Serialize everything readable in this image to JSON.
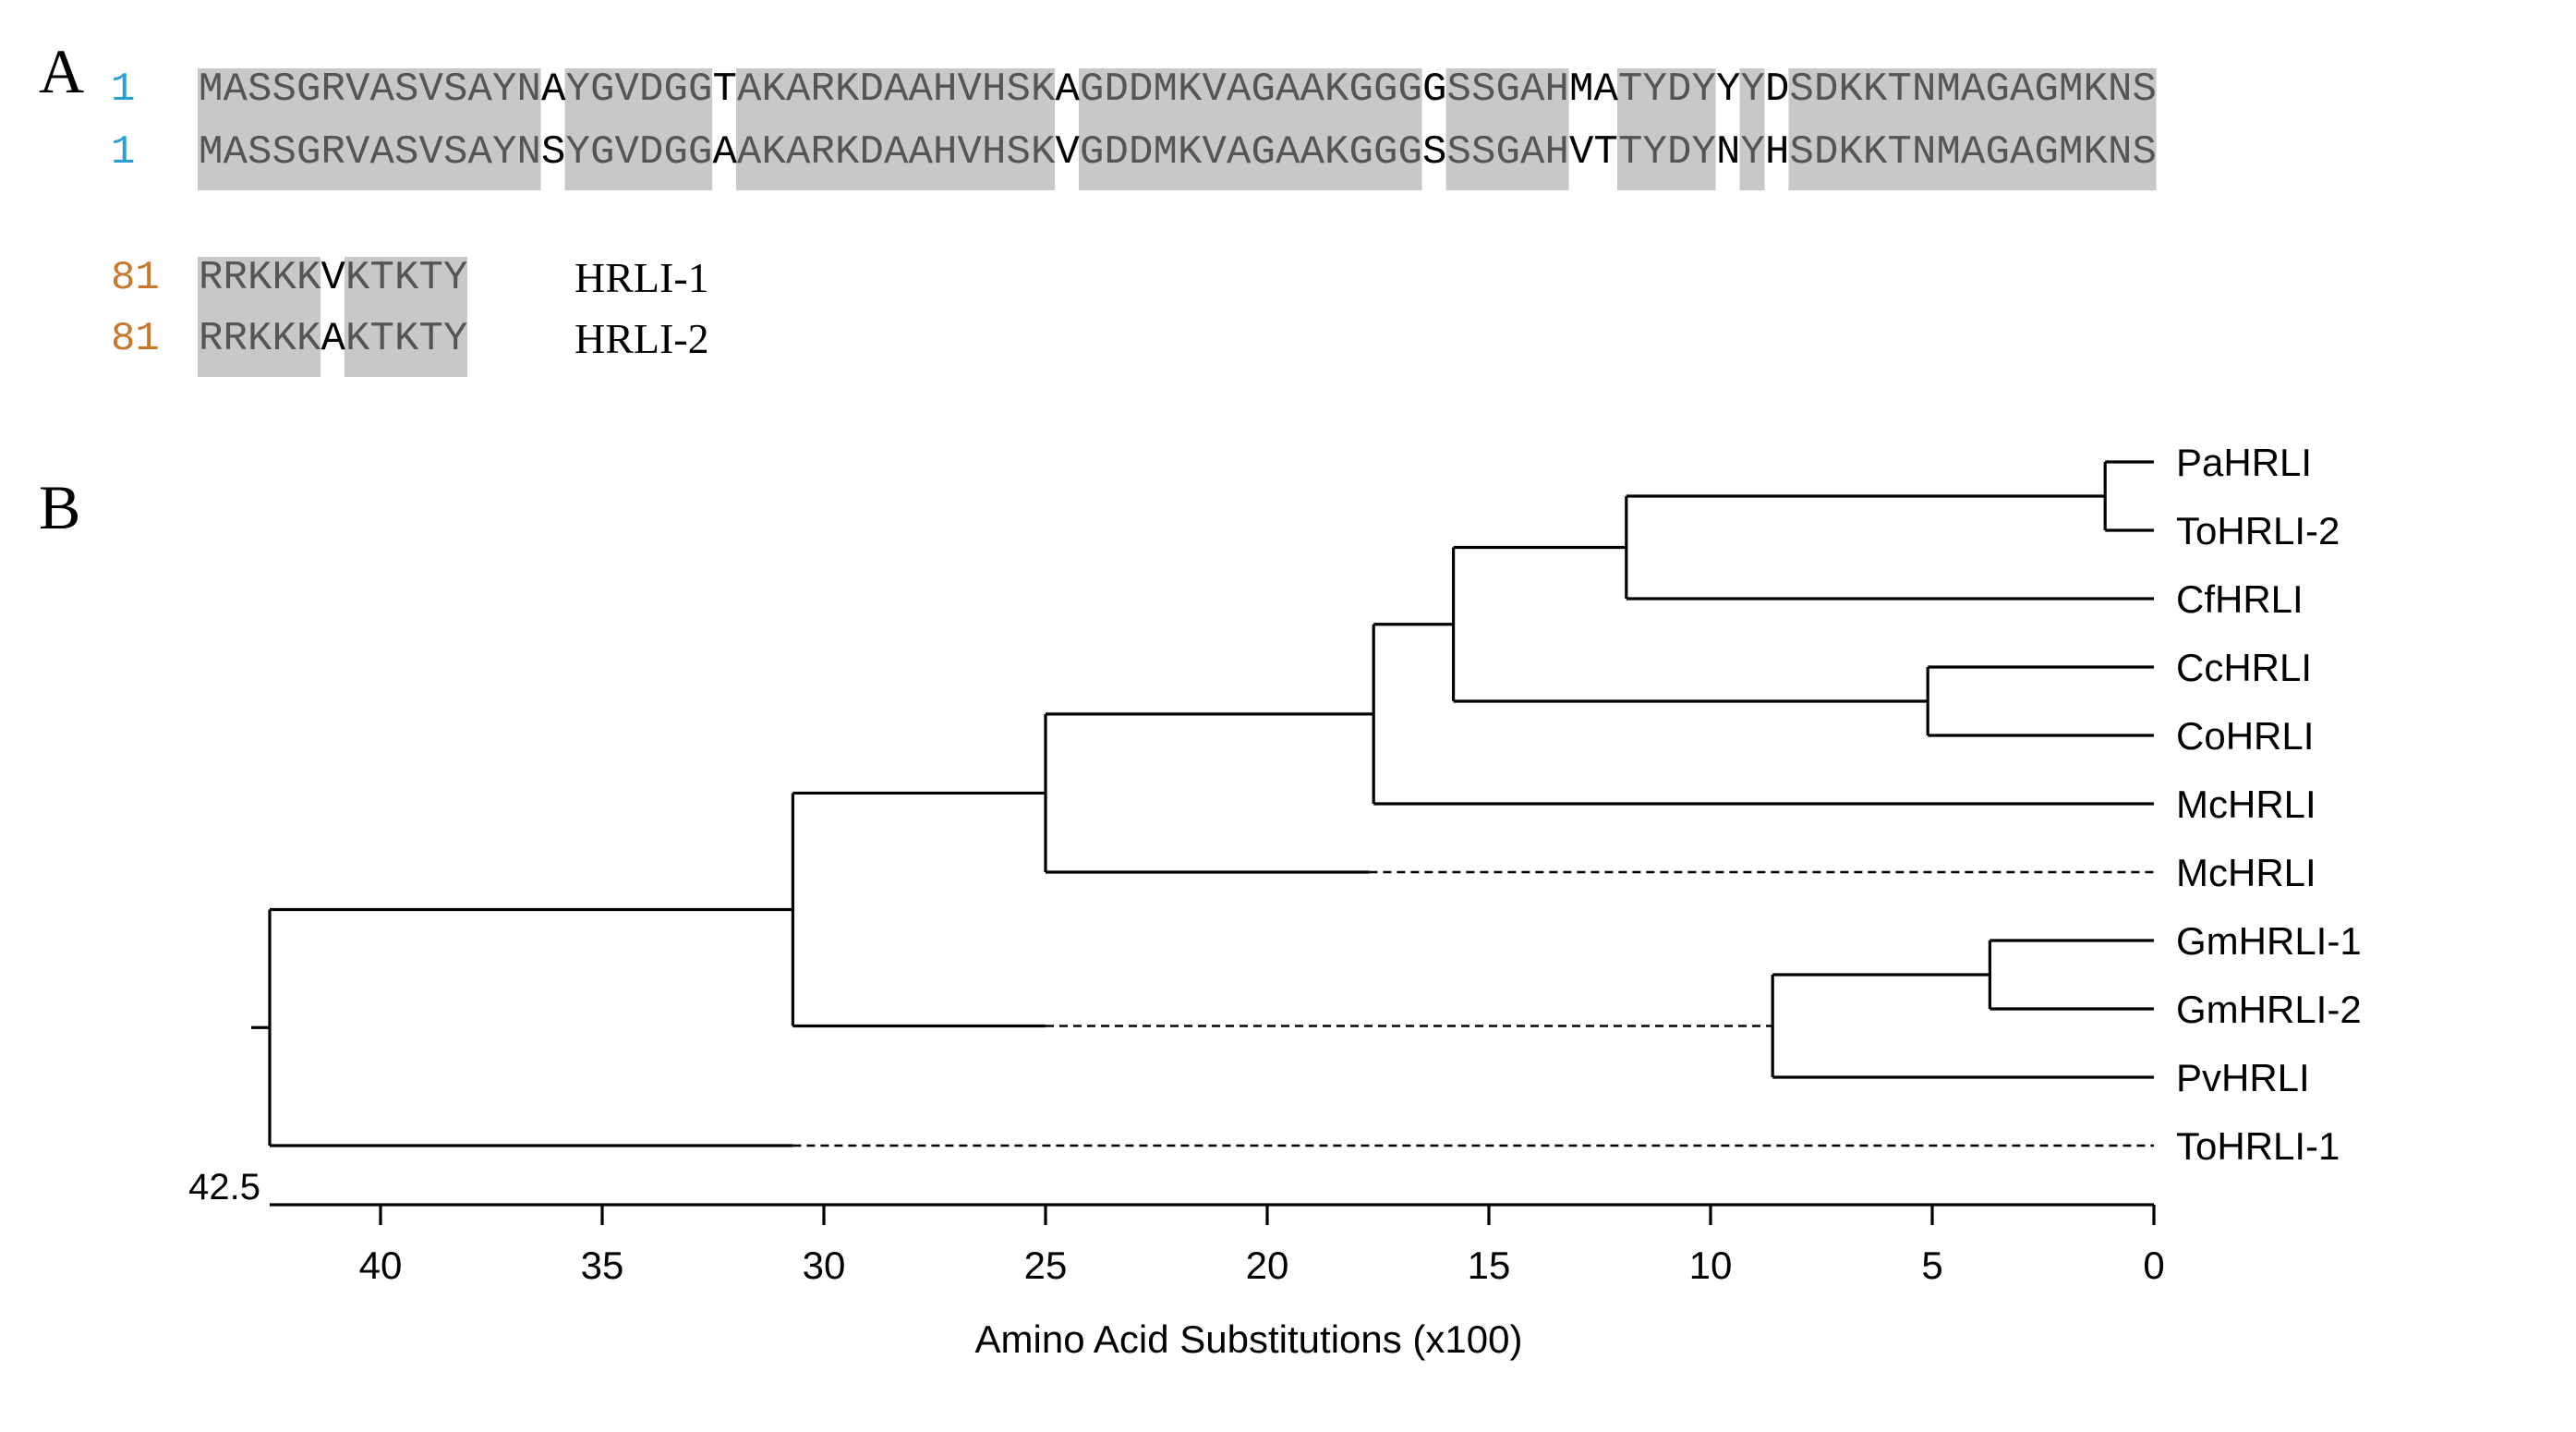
{
  "panel_a": {
    "label": "A",
    "rows": [
      {
        "number": "1",
        "sequence": "MASSGRVASVSAYNAYGVDGGTAKARKDAAHVHSKAGDDMKVAGAAKGGGGSSGAHMATYDYYYDSDKKTNMAGAGMKNS",
        "name": ""
      },
      {
        "number": "1",
        "sequence": "MASSGRVASVSAYNSYGVDGGAAKARKDAAHVHSKVGDDMKVAGAAKGGGSSSGAHVTTYDYNYHSDKKTNMAGAGMKNS",
        "name": ""
      },
      {
        "number": "81",
        "sequence": "RRKKKVKTKTY",
        "name": "HRLI-1"
      },
      {
        "number": "81",
        "sequence": "RRKKKAKTKTY",
        "name": "HRLI-2"
      }
    ],
    "colors": {
      "identity_fill": "#c8c8c8",
      "identical_text": "#555555",
      "different_text": "#000000",
      "number_block1": "#2a9fd6",
      "number_block2": "#c8782a"
    }
  },
  "panel_b": {
    "label": "B",
    "tree": {
      "name": "root",
      "height": 42.5,
      "children": [
        {
          "name": "n1",
          "height": 30.7,
          "children": [
            {
              "name": "n2",
              "height": 25.0,
              "children": [
                {
                  "name": "n3",
                  "height": 17.6,
                  "children": [
                    {
                      "name": "n4",
                      "height": 15.8,
                      "children": [
                        {
                          "name": "n5",
                          "height": 11.9,
                          "children": [
                            {
                              "name": "n6",
                              "height": 1.1,
                              "children": [
                                {
                                  "name": "PaHRLI",
                                  "height": 0
                                },
                                {
                                  "name": "ToHRLI-2",
                                  "height": 0
                                }
                              ]
                            },
                            {
                              "name": "CfHRLI",
                              "height": 0
                            }
                          ]
                        },
                        {
                          "name": "n7",
                          "height": 5.1,
                          "children": [
                            {
                              "name": "CcHRLI",
                              "height": 0
                            },
                            {
                              "name": "CoHRLI",
                              "height": 0
                            }
                          ]
                        }
                      ]
                    },
                    {
                      "name": "McHRLI",
                      "height": 0
                    }
                  ]
                },
                {
                  "name": "McHRLI",
                  "height": 0,
                  "dash_from": 17.7
                }
              ]
            },
            {
              "name": "n8",
              "height": 8.6,
              "dash_from": 25.0,
              "children": [
                {
                  "name": "n9",
                  "height": 3.7,
                  "children": [
                    {
                      "name": "GmHRLI-1",
                      "height": 0
                    },
                    {
                      "name": "GmHRLI-2",
                      "height": 0
                    }
                  ]
                },
                {
                  "name": "PvHRLI",
                  "height": 0
                }
              ]
            }
          ]
        },
        {
          "name": "ToHRLI-1",
          "height": 0,
          "dash_from": 30.7
        }
      ]
    },
    "axis": {
      "max": 42.5,
      "min": 0,
      "ticks": [
        40,
        35,
        30,
        25,
        20,
        15,
        10,
        5,
        0
      ],
      "tick_labels": [
        "40",
        "35",
        "30",
        "25",
        "20",
        "15",
        "10",
        "5",
        "0"
      ],
      "max_label": "42.5",
      "title": "Amino Acid Substitutions (x100)"
    }
  }
}
